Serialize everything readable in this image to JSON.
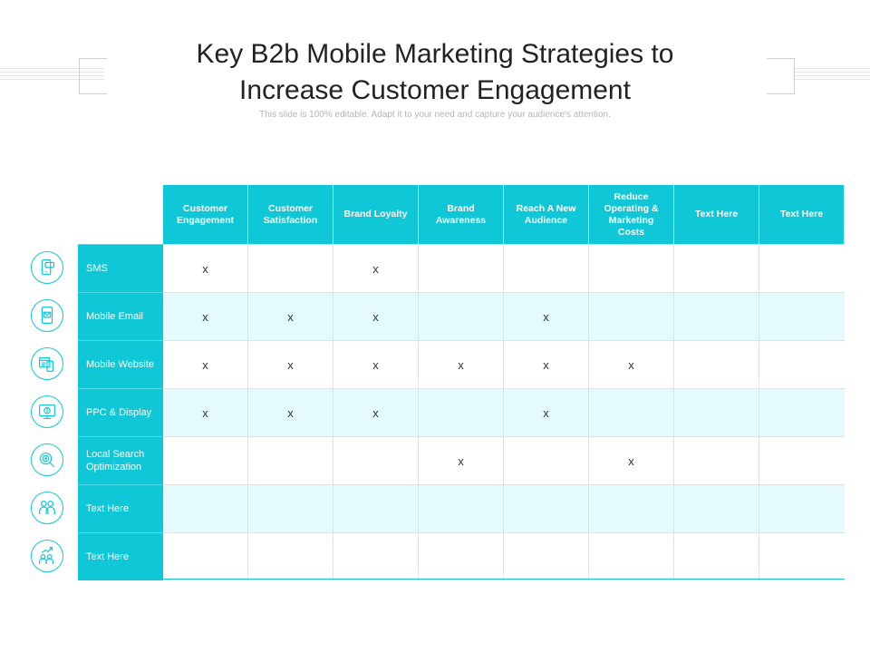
{
  "slide": {
    "title_line1": "Key B2b Mobile Marketing Strategies to",
    "title_line2": "Increase Customer Engagement",
    "subtitle": "This slide is 100% editable. Adapt it to your need and capture your audience's attention."
  },
  "table": {
    "columns": [
      "Customer Engagement",
      "Customer Satisfaction",
      "Brand Loyalty",
      "Brand Awareness",
      "Reach A New Audience",
      "Reduce Operating & Marketing Costs",
      "Text Here",
      "Text Here"
    ],
    "rows": [
      {
        "label": "SMS",
        "icon": "sms-phone-icon",
        "cells": [
          "x",
          "",
          "x",
          "",
          "",
          "",
          "",
          ""
        ]
      },
      {
        "label": "Mobile Email",
        "icon": "mobile-email-icon",
        "cells": [
          "x",
          "x",
          "x",
          "",
          "x",
          "",
          "",
          ""
        ]
      },
      {
        "label": "Mobile Website",
        "icon": "mobile-website-icon",
        "cells": [
          "x",
          "x",
          "x",
          "x",
          "x",
          "x",
          "",
          ""
        ]
      },
      {
        "label": "PPC & Display",
        "icon": "ppc-display-icon",
        "cells": [
          "x",
          "x",
          "x",
          "",
          "x",
          "",
          "",
          ""
        ]
      },
      {
        "label": "Local Search Optimization",
        "icon": "local-search-icon",
        "cells": [
          "",
          "",
          "",
          "x",
          "",
          "x",
          "",
          ""
        ]
      },
      {
        "label": "Text Here",
        "icon": "people-icon",
        "cells": [
          "",
          "",
          "",
          "",
          "",
          "",
          "",
          ""
        ]
      },
      {
        "label": "Text Here",
        "icon": "growth-people-icon",
        "cells": [
          "",
          "",
          "",
          "",
          "",
          "",
          "",
          ""
        ]
      }
    ]
  },
  "colors": {
    "accent": "#0fc7d6",
    "alt_row": "#e4fafc"
  }
}
